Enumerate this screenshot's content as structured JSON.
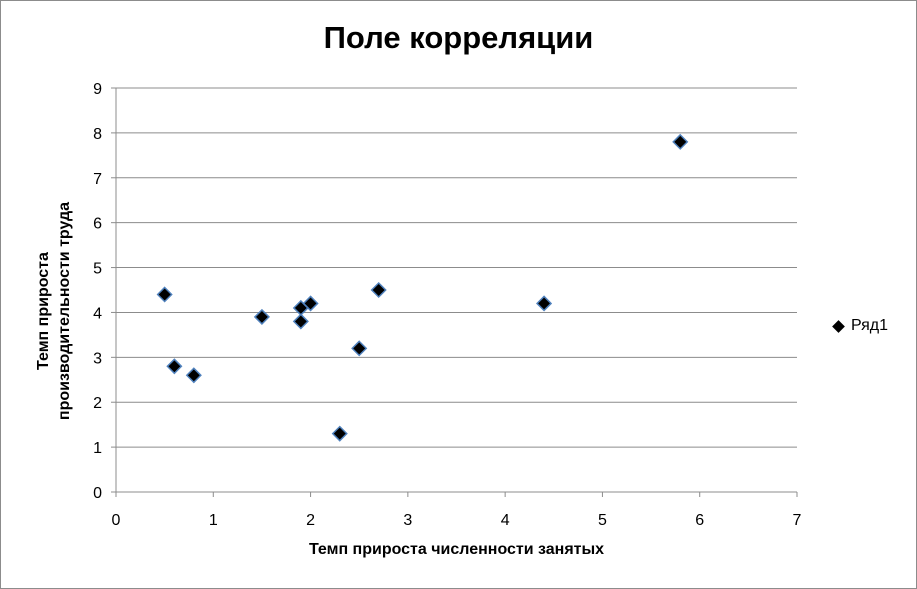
{
  "chart_data": {
    "type": "scatter",
    "title": "Поле корреляции",
    "xlabel": "Темп прироста численности занятых",
    "ylabel_lines": [
      "Темп прироста",
      "производительности труда"
    ],
    "xlim": [
      0,
      7
    ],
    "ylim": [
      0,
      9
    ],
    "x_ticks": [
      "0",
      "1",
      "2",
      "3",
      "4",
      "5",
      "6",
      "7"
    ],
    "y_ticks": [
      "0",
      "1",
      "2",
      "3",
      "4",
      "5",
      "6",
      "7",
      "8",
      "9"
    ],
    "grid": "horizontal",
    "legend_position": "right",
    "series": [
      {
        "name": "Ряд1",
        "marker": "diamond",
        "color": "#000000",
        "edge_color": "#4f81bd",
        "points": [
          {
            "x": 0.5,
            "y": 4.4
          },
          {
            "x": 0.6,
            "y": 2.8
          },
          {
            "x": 0.8,
            "y": 2.6
          },
          {
            "x": 1.5,
            "y": 3.9
          },
          {
            "x": 1.9,
            "y": 4.1
          },
          {
            "x": 1.9,
            "y": 3.8
          },
          {
            "x": 2.0,
            "y": 4.2
          },
          {
            "x": 2.3,
            "y": 1.3
          },
          {
            "x": 2.5,
            "y": 3.2
          },
          {
            "x": 2.7,
            "y": 4.5
          },
          {
            "x": 4.4,
            "y": 4.2
          },
          {
            "x": 5.8,
            "y": 7.8
          }
        ]
      }
    ]
  }
}
